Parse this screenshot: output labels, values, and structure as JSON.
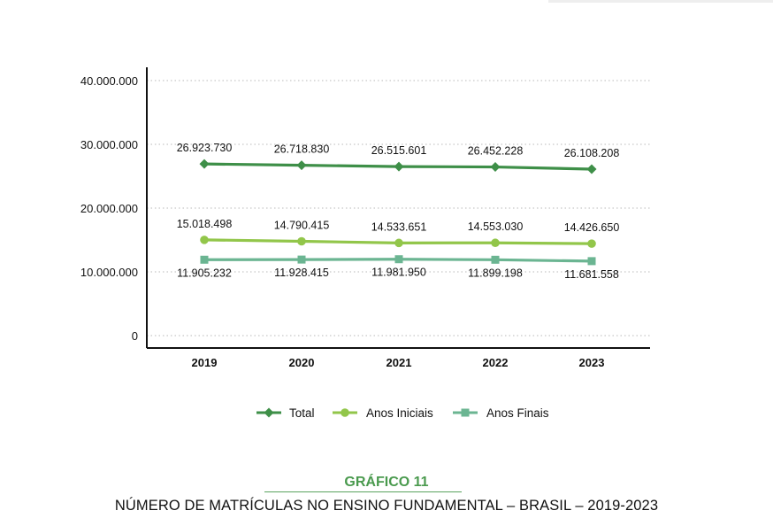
{
  "chart_data": {
    "type": "line",
    "categories": [
      "2019",
      "2020",
      "2021",
      "2022",
      "2023"
    ],
    "ylim": [
      0,
      40000000
    ],
    "yticks": [
      {
        "value": 0,
        "label": "0"
      },
      {
        "value": 10000000,
        "label": "10.000.000"
      },
      {
        "value": 20000000,
        "label": "20.000.000"
      },
      {
        "value": 30000000,
        "label": "30.000.000"
      },
      {
        "value": 40000000,
        "label": "40.000.000"
      }
    ],
    "grid": true,
    "legend_position": "bottom",
    "series": [
      {
        "name": "Total",
        "color": "#3e8f48",
        "marker": "diamond",
        "values": [
          26923730,
          26718830,
          26515601,
          26452228,
          26108208
        ],
        "labels": [
          "26.923.730",
          "26.718.830",
          "26.515.601",
          "26.452.228",
          "26.108.208"
        ],
        "label_position": "above"
      },
      {
        "name": "Anos Iniciais",
        "color": "#92c64a",
        "marker": "circle",
        "values": [
          15018498,
          14790415,
          14533651,
          14553030,
          14426650
        ],
        "labels": [
          "15.018.498",
          "14.790.415",
          "14.533.651",
          "14.553.030",
          "14.426.650"
        ],
        "label_position": "above"
      },
      {
        "name": "Anos Finais",
        "color": "#6bb592",
        "marker": "square",
        "values": [
          11905232,
          11928415,
          11981950,
          11899198,
          11681558
        ],
        "labels": [
          "11.905.232",
          "11.928.415",
          "11.981.950",
          "11.899.198",
          "11.681.558"
        ],
        "label_position": "below"
      }
    ]
  },
  "caption": {
    "title": "GRÁFICO 11",
    "subtitle": "NÚMERO DE MATRÍCULAS NO ENSINO FUNDAMENTAL – BRASIL – 2019-2023"
  }
}
